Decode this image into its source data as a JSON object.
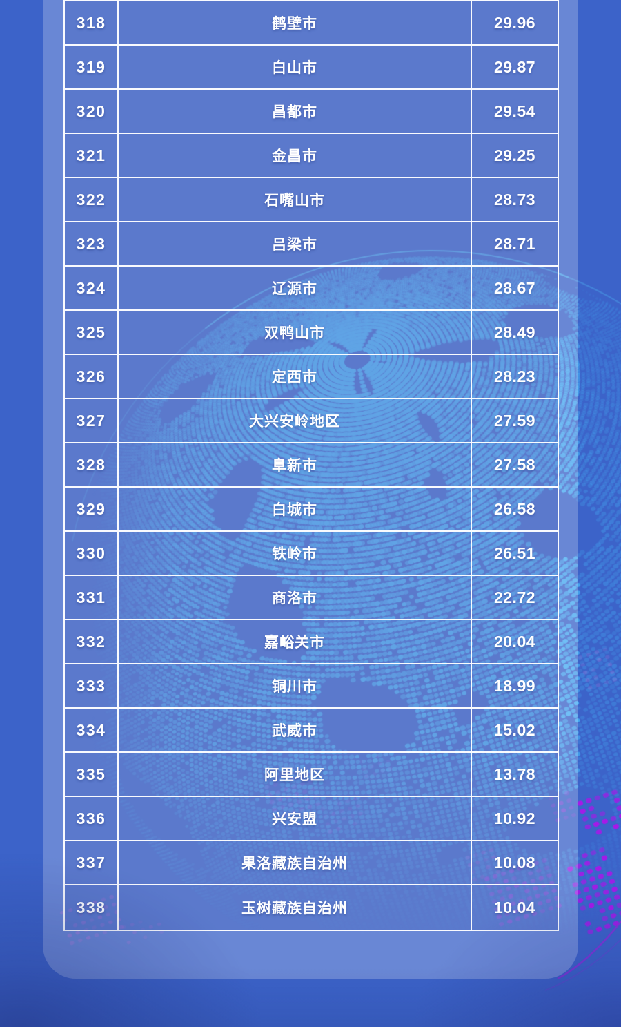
{
  "chart_data": {
    "type": "table",
    "rows": [
      {
        "rank": "318",
        "name": "鹤壁市",
        "value": "29.96"
      },
      {
        "rank": "319",
        "name": "白山市",
        "value": "29.87"
      },
      {
        "rank": "320",
        "name": "昌都市",
        "value": "29.54"
      },
      {
        "rank": "321",
        "name": "金昌市",
        "value": "29.25"
      },
      {
        "rank": "322",
        "name": "石嘴山市",
        "value": "28.73"
      },
      {
        "rank": "323",
        "name": "吕梁市",
        "value": "28.71"
      },
      {
        "rank": "324",
        "name": "辽源市",
        "value": "28.67"
      },
      {
        "rank": "325",
        "name": "双鸭山市",
        "value": "28.49"
      },
      {
        "rank": "326",
        "name": "定西市",
        "value": "28.23"
      },
      {
        "rank": "327",
        "name": "大兴安岭地区",
        "value": "27.59"
      },
      {
        "rank": "328",
        "name": "阜新市",
        "value": "27.58"
      },
      {
        "rank": "329",
        "name": "白城市",
        "value": "26.58"
      },
      {
        "rank": "330",
        "name": "铁岭市",
        "value": "26.51"
      },
      {
        "rank": "331",
        "name": "商洛市",
        "value": "22.72"
      },
      {
        "rank": "332",
        "name": "嘉峪关市",
        "value": "20.04"
      },
      {
        "rank": "333",
        "name": "铜川市",
        "value": "18.99"
      },
      {
        "rank": "334",
        "name": "武威市",
        "value": "15.02"
      },
      {
        "rank": "335",
        "name": "阿里地区",
        "value": "13.78"
      },
      {
        "rank": "336",
        "name": "兴安盟",
        "value": "10.92"
      },
      {
        "rank": "337",
        "name": "果洛藏族自治州",
        "value": "10.08"
      },
      {
        "rank": "338",
        "name": "玉树藏族自治州",
        "value": "10.04"
      }
    ]
  },
  "colors": {
    "page_background": "#3C63C9",
    "panel_tint": "#6B81D0",
    "cell_fill": "#5C79CD",
    "table_border": "#FFFFFF",
    "text": "#FFFFFF",
    "globe_dot": "#46AFF5",
    "globe_rim": "#55CCFF",
    "purple_dot": "#A818E8",
    "violet_dot": "#9B59E0",
    "magenta_dot": "#D052D8",
    "lavender_dot": "#B07AE0",
    "purple_line": "#9628DC"
  }
}
